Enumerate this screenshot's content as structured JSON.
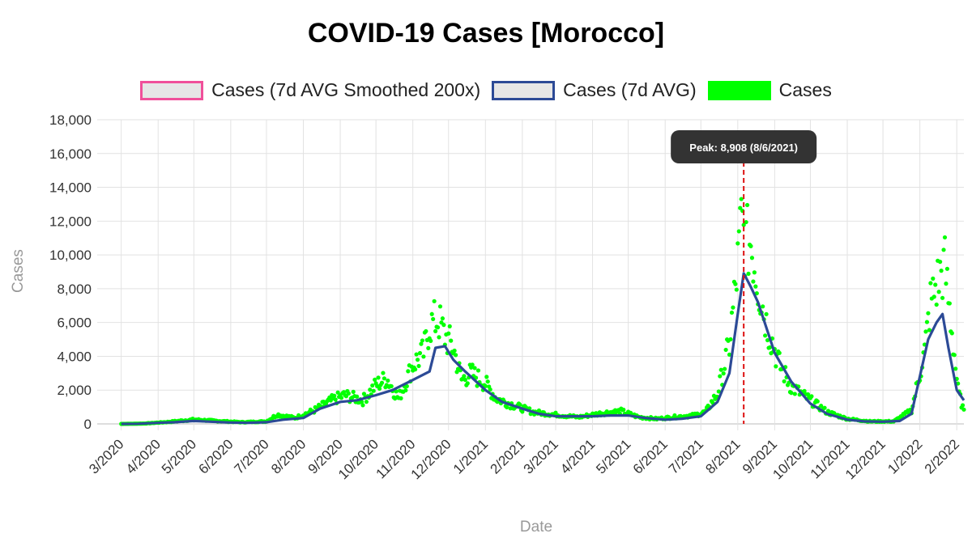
{
  "chart_data": {
    "type": "line",
    "title": "COVID-19 Cases [Morocco]",
    "xlabel": "Date",
    "ylabel": "Cases",
    "ylim": [
      0,
      18000
    ],
    "y_ticks": [
      0,
      2000,
      4000,
      6000,
      8000,
      10000,
      12000,
      14000,
      16000,
      18000
    ],
    "y_tick_labels": [
      "0",
      "2,000",
      "4,000",
      "6,000",
      "8,000",
      "10,000",
      "12,000",
      "14,000",
      "16,000",
      "18,000"
    ],
    "x_tick_labels": [
      "3/2020",
      "4/2020",
      "5/2020",
      "6/2020",
      "7/2020",
      "8/2020",
      "9/2020",
      "10/2020",
      "11/2020",
      "12/2020",
      "1/2021",
      "2/2021",
      "3/2021",
      "4/2021",
      "5/2021",
      "6/2021",
      "7/2021",
      "8/2021",
      "9/2021",
      "10/2021",
      "11/2021",
      "12/2021",
      "1/2022",
      "2/2022"
    ],
    "x_range": [
      "2020-02-20",
      "2022-02-07"
    ],
    "grid": true,
    "legend": {
      "position": "top",
      "entries": [
        {
          "name": "Cases (7d AVG Smoothed 200x)",
          "color": "#f0509a",
          "fill": "#e6e6e6"
        },
        {
          "name": "Cases (7d AVG)",
          "color": "#2c4a96",
          "fill": "#e6e6e6"
        },
        {
          "name": "Cases",
          "color": "#00ff00",
          "fill": "#00ff00"
        }
      ]
    },
    "annotation": {
      "label": "Peak: 8,908 (8/6/2021)",
      "date": "2021-08-06",
      "value": 8908,
      "line_color": "#dd1111"
    },
    "series": [
      {
        "name": "Cases (7d AVG)",
        "color": "#2c4a96",
        "points": [
          [
            "2020-03-01",
            0
          ],
          [
            "2020-03-15",
            10
          ],
          [
            "2020-04-01",
            60
          ],
          [
            "2020-04-15",
            100
          ],
          [
            "2020-05-01",
            170
          ],
          [
            "2020-05-15",
            130
          ],
          [
            "2020-06-01",
            80
          ],
          [
            "2020-06-15",
            60
          ],
          [
            "2020-07-01",
            100
          ],
          [
            "2020-07-15",
            250
          ],
          [
            "2020-08-01",
            350
          ],
          [
            "2020-08-15",
            900
          ],
          [
            "2020-09-01",
            1300
          ],
          [
            "2020-09-15",
            1400
          ],
          [
            "2020-10-01",
            1700
          ],
          [
            "2020-10-15",
            2000
          ],
          [
            "2020-11-01",
            2600
          ],
          [
            "2020-11-15",
            3100
          ],
          [
            "2020-11-20",
            4500
          ],
          [
            "2020-11-28",
            4600
          ],
          [
            "2020-12-05",
            3800
          ],
          [
            "2020-12-15",
            3100
          ],
          [
            "2021-01-01",
            2000
          ],
          [
            "2021-01-15",
            1300
          ],
          [
            "2021-02-01",
            900
          ],
          [
            "2021-02-15",
            600
          ],
          [
            "2021-03-01",
            450
          ],
          [
            "2021-04-01",
            450
          ],
          [
            "2021-04-15",
            500
          ],
          [
            "2021-05-01",
            500
          ],
          [
            "2021-05-15",
            350
          ],
          [
            "2021-06-01",
            250
          ],
          [
            "2021-06-15",
            300
          ],
          [
            "2021-07-01",
            450
          ],
          [
            "2021-07-15",
            1300
          ],
          [
            "2021-07-25",
            3000
          ],
          [
            "2021-08-01",
            6500
          ],
          [
            "2021-08-06",
            8908
          ],
          [
            "2021-08-12",
            8100
          ],
          [
            "2021-08-18",
            7200
          ],
          [
            "2021-09-01",
            4200
          ],
          [
            "2021-09-15",
            2500
          ],
          [
            "2021-10-01",
            1200
          ],
          [
            "2021-10-15",
            600
          ],
          [
            "2021-11-01",
            250
          ],
          [
            "2021-11-15",
            150
          ],
          [
            "2021-12-01",
            130
          ],
          [
            "2021-12-15",
            170
          ],
          [
            "2021-12-25",
            600
          ],
          [
            "2022-01-01",
            2800
          ],
          [
            "2022-01-08",
            5000
          ],
          [
            "2022-01-15",
            6000
          ],
          [
            "2022-01-20",
            6500
          ],
          [
            "2022-01-25",
            4500
          ],
          [
            "2022-02-01",
            2000
          ],
          [
            "2022-02-07",
            1400
          ]
        ]
      },
      {
        "name": "Cases",
        "color": "#00ff00",
        "points": [
          [
            "2020-03-01",
            0
          ],
          [
            "2020-03-20",
            20
          ],
          [
            "2020-04-10",
            120
          ],
          [
            "2020-05-01",
            260
          ],
          [
            "2020-05-20",
            180
          ],
          [
            "2020-06-10",
            100
          ],
          [
            "2020-07-01",
            150
          ],
          [
            "2020-07-10",
            550
          ],
          [
            "2020-07-25",
            350
          ],
          [
            "2020-08-10",
            800
          ],
          [
            "2020-08-25",
            1400
          ],
          [
            "2020-09-05",
            1700
          ],
          [
            "2020-09-20",
            1400
          ],
          [
            "2020-10-01",
            2300
          ],
          [
            "2020-10-10",
            2700
          ],
          [
            "2020-10-20",
            1500
          ],
          [
            "2020-11-01",
            3500
          ],
          [
            "2020-11-10",
            4200
          ],
          [
            "2020-11-15",
            5800
          ],
          [
            "2020-11-22",
            6200
          ],
          [
            "2020-11-28",
            5200
          ],
          [
            "2020-12-05",
            4500
          ],
          [
            "2020-12-12",
            2600
          ],
          [
            "2020-12-20",
            3000
          ],
          [
            "2021-01-01",
            2400
          ],
          [
            "2021-01-10",
            1500
          ],
          [
            "2021-01-25",
            1100
          ],
          [
            "2021-02-10",
            700
          ],
          [
            "2021-03-01",
            550
          ],
          [
            "2021-03-20",
            400
          ],
          [
            "2021-04-10",
            650
          ],
          [
            "2021-04-25",
            750
          ],
          [
            "2021-05-10",
            400
          ],
          [
            "2021-05-25",
            300
          ],
          [
            "2021-06-10",
            420
          ],
          [
            "2021-06-25",
            500
          ],
          [
            "2021-07-05",
            700
          ],
          [
            "2021-07-15",
            1800
          ],
          [
            "2021-07-25",
            4700
          ],
          [
            "2021-08-01",
            9400
          ],
          [
            "2021-08-04",
            12000
          ],
          [
            "2021-08-08",
            10600
          ],
          [
            "2021-08-12",
            10800
          ],
          [
            "2021-08-18",
            8300
          ],
          [
            "2021-08-25",
            6000
          ],
          [
            "2021-09-05",
            3500
          ],
          [
            "2021-09-15",
            2200
          ],
          [
            "2021-10-01",
            1400
          ],
          [
            "2021-10-15",
            700
          ],
          [
            "2021-11-01",
            300
          ],
          [
            "2021-11-20",
            150
          ],
          [
            "2021-12-10",
            150
          ],
          [
            "2021-12-25",
            800
          ],
          [
            "2022-01-05",
            4300
          ],
          [
            "2022-01-10",
            7200
          ],
          [
            "2022-01-18",
            8800
          ],
          [
            "2022-01-22",
            9300
          ],
          [
            "2022-01-28",
            5500
          ],
          [
            "2022-02-02",
            2000
          ],
          [
            "2022-02-07",
            700
          ]
        ]
      },
      {
        "name": "Cases (7d AVG Smoothed 200x)",
        "color": "#f0509a",
        "points": []
      }
    ]
  }
}
